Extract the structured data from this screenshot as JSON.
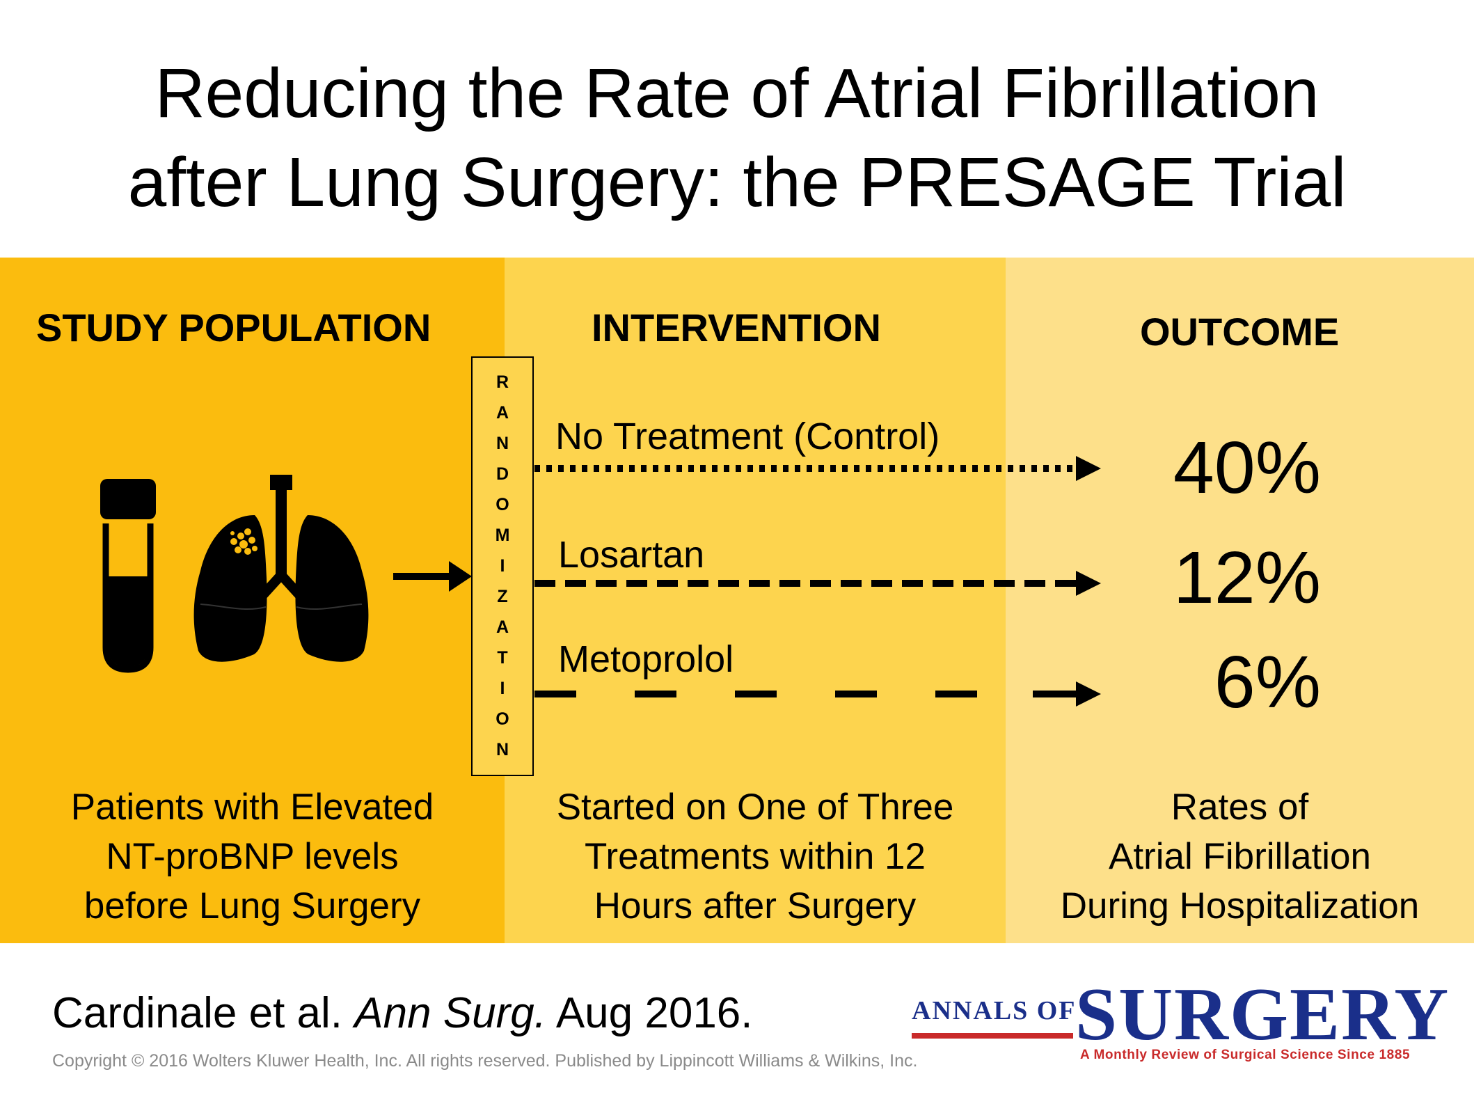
{
  "title": {
    "line1": "Reducing the Rate of Atrial Fibrillation",
    "line2": "after Lung Surgery: the PRESAGE Trial"
  },
  "colors": {
    "panel_population": "#fbbc0e",
    "panel_intervention": "#fdd44e",
    "panel_outcome": "#fde08a"
  },
  "population": {
    "heading": "STUDY POPULATION",
    "icons": [
      "test-tube-icon",
      "lungs-icon"
    ],
    "description": [
      "Patients with Elevated",
      "NT-proBNP levels",
      "before Lung Surgery"
    ]
  },
  "randomization": {
    "letters": [
      "R",
      "A",
      "N",
      "D",
      "O",
      "M",
      "I",
      "Z",
      "A",
      "T",
      "I",
      "O",
      "N"
    ]
  },
  "intervention": {
    "heading": "INTERVENTION",
    "arms": [
      {
        "label": "No Treatment (Control)",
        "line_style": "dotted"
      },
      {
        "label": "Losartan",
        "line_style": "dashed"
      },
      {
        "label": "Metoprolol",
        "line_style": "long-dashed"
      }
    ],
    "description": [
      "Started on One of Three",
      "Treatments within 12",
      "Hours after Surgery"
    ]
  },
  "outcome": {
    "heading": "OUTCOME",
    "rates": [
      "40%",
      "12%",
      "6%"
    ],
    "description": [
      "Rates of",
      "Atrial Fibrillation",
      "During Hospitalization"
    ]
  },
  "footer": {
    "citation_authors": "Cardinale et al.",
    "citation_journal": "Ann Surg.",
    "citation_date": "Aug 2016.",
    "copyright": "Copyright © 2016 Wolters Kluwer Health, Inc. All rights reserved.  Published by Lippincott Williams & Wilkins, Inc.",
    "logo_annals": "ANNALS OF",
    "logo_surgery": "SURGERY",
    "logo_tagline": "A Monthly Review of Surgical Science Since 1885"
  }
}
